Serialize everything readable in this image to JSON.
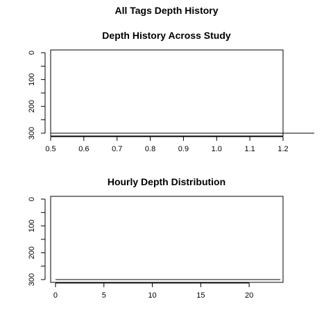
{
  "figure_title": "All Tags Depth History",
  "chart_data": [
    {
      "type": "line",
      "title": "Depth History Across Study",
      "xlabel": "",
      "ylabel": "",
      "xlim": [
        0.5,
        1.2
      ],
      "ylim": [
        300,
        0
      ],
      "y_reversed": true,
      "xticks": [
        0.5,
        0.6,
        0.7,
        0.8,
        0.9,
        1.0,
        1.1,
        1.2
      ],
      "xtick_labels": [
        "0.5",
        "0.6",
        "0.7",
        "0.8",
        "0.9",
        "1.0",
        "1.1",
        "1.2"
      ],
      "yticks": [
        0,
        100,
        200,
        300
      ],
      "ytick_labels": [
        "0",
        "100",
        "200",
        "300"
      ],
      "series": [],
      "grid": false,
      "legend": "none"
    },
    {
      "type": "line",
      "title": "Hourly Depth Distribution",
      "xlabel": "",
      "ylabel": "",
      "xlim": [
        0,
        23
      ],
      "ylim": [
        300,
        0
      ],
      "y_reversed": true,
      "xticks": [
        0,
        5,
        10,
        15,
        20
      ],
      "xtick_labels": [
        "0",
        "5",
        "10",
        "15",
        "20"
      ],
      "yticks": [
        0,
        100,
        200,
        300
      ],
      "ytick_labels": [
        "0",
        "100",
        "200",
        "300"
      ],
      "series": [],
      "grid": false,
      "legend": "none"
    }
  ]
}
